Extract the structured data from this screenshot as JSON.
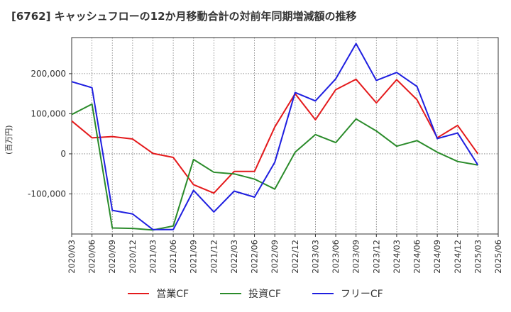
{
  "title": "[6762]  キャッシュフローの12か月移動合計の対前年同期増減額の推移",
  "ylabel": "(百万円)",
  "chart_data": {
    "type": "line",
    "x": [
      "2020/03",
      "2020/06",
      "2020/09",
      "2020/12",
      "2021/03",
      "2021/06",
      "2021/09",
      "2021/12",
      "2022/03",
      "2022/06",
      "2022/09",
      "2022/12",
      "2023/03",
      "2023/06",
      "2023/09",
      "2023/12",
      "2024/03",
      "2024/06",
      "2024/09",
      "2024/12",
      "2025/03",
      "2025/06"
    ],
    "y_ticks": [
      200000,
      100000,
      0,
      -100000
    ],
    "y_tick_labels": [
      "200,000",
      "100,000",
      "0",
      "-100,000"
    ],
    "ylim": [
      -200000,
      290000
    ],
    "grid": true,
    "legend_position": "bottom",
    "series": [
      {
        "name": "営業CF",
        "color": "#e41a1c",
        "values": [
          82000,
          40000,
          43000,
          37000,
          1000,
          -9000,
          -77000,
          -98000,
          -44000,
          -44000,
          67000,
          150000,
          85000,
          160000,
          186000,
          127000,
          185000,
          135000,
          40000,
          71000,
          0,
          null
        ]
      },
      {
        "name": "投資CF",
        "color": "#2a8b2a",
        "values": [
          98000,
          124000,
          -185000,
          -186000,
          -190000,
          -180000,
          -14000,
          -46000,
          -50000,
          -63000,
          -88000,
          4000,
          48000,
          28000,
          87000,
          57000,
          19000,
          33000,
          4000,
          -19000,
          -28000,
          null
        ]
      },
      {
        "name": "フリーCF",
        "color": "#1f1fe0",
        "values": [
          180000,
          165000,
          -141000,
          -150000,
          -189000,
          -189000,
          -91000,
          -145000,
          -93000,
          -108000,
          -21000,
          153000,
          132000,
          187000,
          275000,
          183000,
          203000,
          168000,
          38000,
          52000,
          -28000,
          null
        ]
      }
    ]
  }
}
